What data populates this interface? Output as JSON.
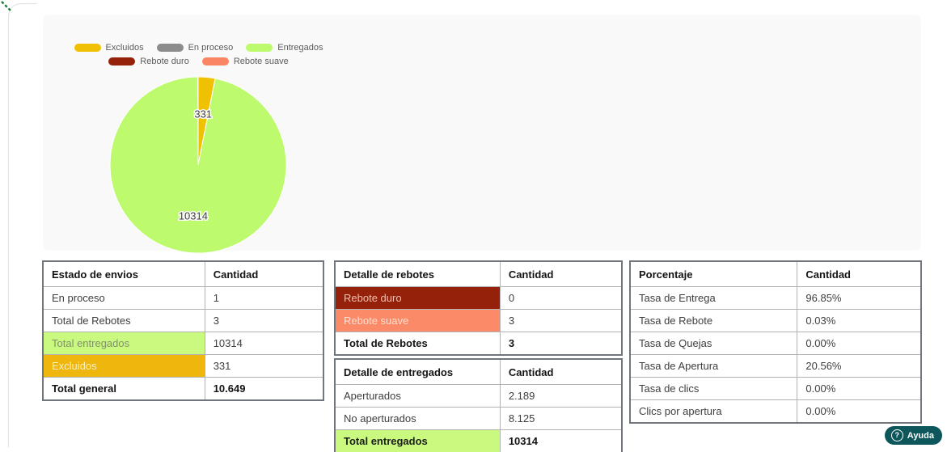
{
  "colors": {
    "green_highlight": "#c9f97e",
    "yellow_highlight": "#efb70e",
    "darkred_highlight": "#96210a",
    "salmon_highlight": "#fa8a68",
    "teal_button": "#0d565c",
    "pie_green": "#bdfa6e",
    "pie_yellow": "#f0c002",
    "legend_gray": "#8c8c8c"
  },
  "chart_data": {
    "type": "pie",
    "title": "",
    "legend_position": "top",
    "total": 10649,
    "slices": [
      {
        "label": "Excluidos",
        "value": 331,
        "color": "#f0c002",
        "data_label": "331"
      },
      {
        "label": "En proceso",
        "value": 1,
        "color": "#8c8c8c",
        "data_label": ""
      },
      {
        "label": "Entregados",
        "value": 10314,
        "color": "#bdfa6e",
        "data_label": "10314"
      },
      {
        "label": "Rebote duro",
        "value": 0,
        "color": "#96210a",
        "data_label": ""
      },
      {
        "label": "Rebote suave",
        "value": 3,
        "color": "#fa8565",
        "data_label": ""
      }
    ]
  },
  "tables": [
    {
      "id": "estado-de-envios",
      "headers": [
        "Estado de envios",
        "Cantidad"
      ],
      "rows": [
        {
          "label": "En proceso",
          "value": "1",
          "highlight": null,
          "bold": false
        },
        {
          "label": "Total de Rebotes",
          "value": "3",
          "highlight": null,
          "bold": false
        },
        {
          "label": "Total entregados",
          "value": "10314",
          "highlight": "green",
          "bold": false
        },
        {
          "label": "Excluidos",
          "value": "331",
          "highlight": "yellow",
          "bold": false
        },
        {
          "label": "Total general",
          "value": "10.649",
          "highlight": null,
          "bold": true
        }
      ]
    },
    {
      "id": "detalle-de-rebotes",
      "headers": [
        "Detalle de rebotes",
        "Cantidad"
      ],
      "rows": [
        {
          "label": "Rebote duro",
          "value": "0",
          "highlight": "darkred",
          "bold": false
        },
        {
          "label": "Rebote suave",
          "value": "3",
          "highlight": "salmon",
          "bold": false
        },
        {
          "label": "Total de Rebotes",
          "value": "3",
          "highlight": null,
          "bold": true
        }
      ]
    },
    {
      "id": "detalle-de-entregados",
      "headers": [
        "Detalle de entregados",
        "Cantidad"
      ],
      "rows": [
        {
          "label": "Aperturados",
          "value": "2.189",
          "highlight": null,
          "bold": false
        },
        {
          "label": "No aperturados",
          "value": "8.125",
          "highlight": null,
          "bold": false
        },
        {
          "label": "Total entregados",
          "value": "10314",
          "highlight": "green",
          "bold": true
        }
      ]
    },
    {
      "id": "porcentaje",
      "headers": [
        "Porcentaje",
        "Cantidad"
      ],
      "rows": [
        {
          "label": "Tasa de Entrega",
          "value": "96.85%",
          "highlight": null,
          "bold": false
        },
        {
          "label": "Tasa de Rebote",
          "value": "0.03%",
          "highlight": null,
          "bold": false
        },
        {
          "label": "Tasa de Quejas",
          "value": "0.00%",
          "highlight": null,
          "bold": false
        },
        {
          "label": "Tasa de Apertura",
          "value": "20.56%",
          "highlight": null,
          "bold": false
        },
        {
          "label": "Tasa de clics",
          "value": "0.00%",
          "highlight": null,
          "bold": false
        },
        {
          "label": "Clics por apertura",
          "value": "0.00%",
          "highlight": null,
          "bold": false
        }
      ]
    }
  ],
  "help_button": {
    "label": "Ayuda"
  }
}
